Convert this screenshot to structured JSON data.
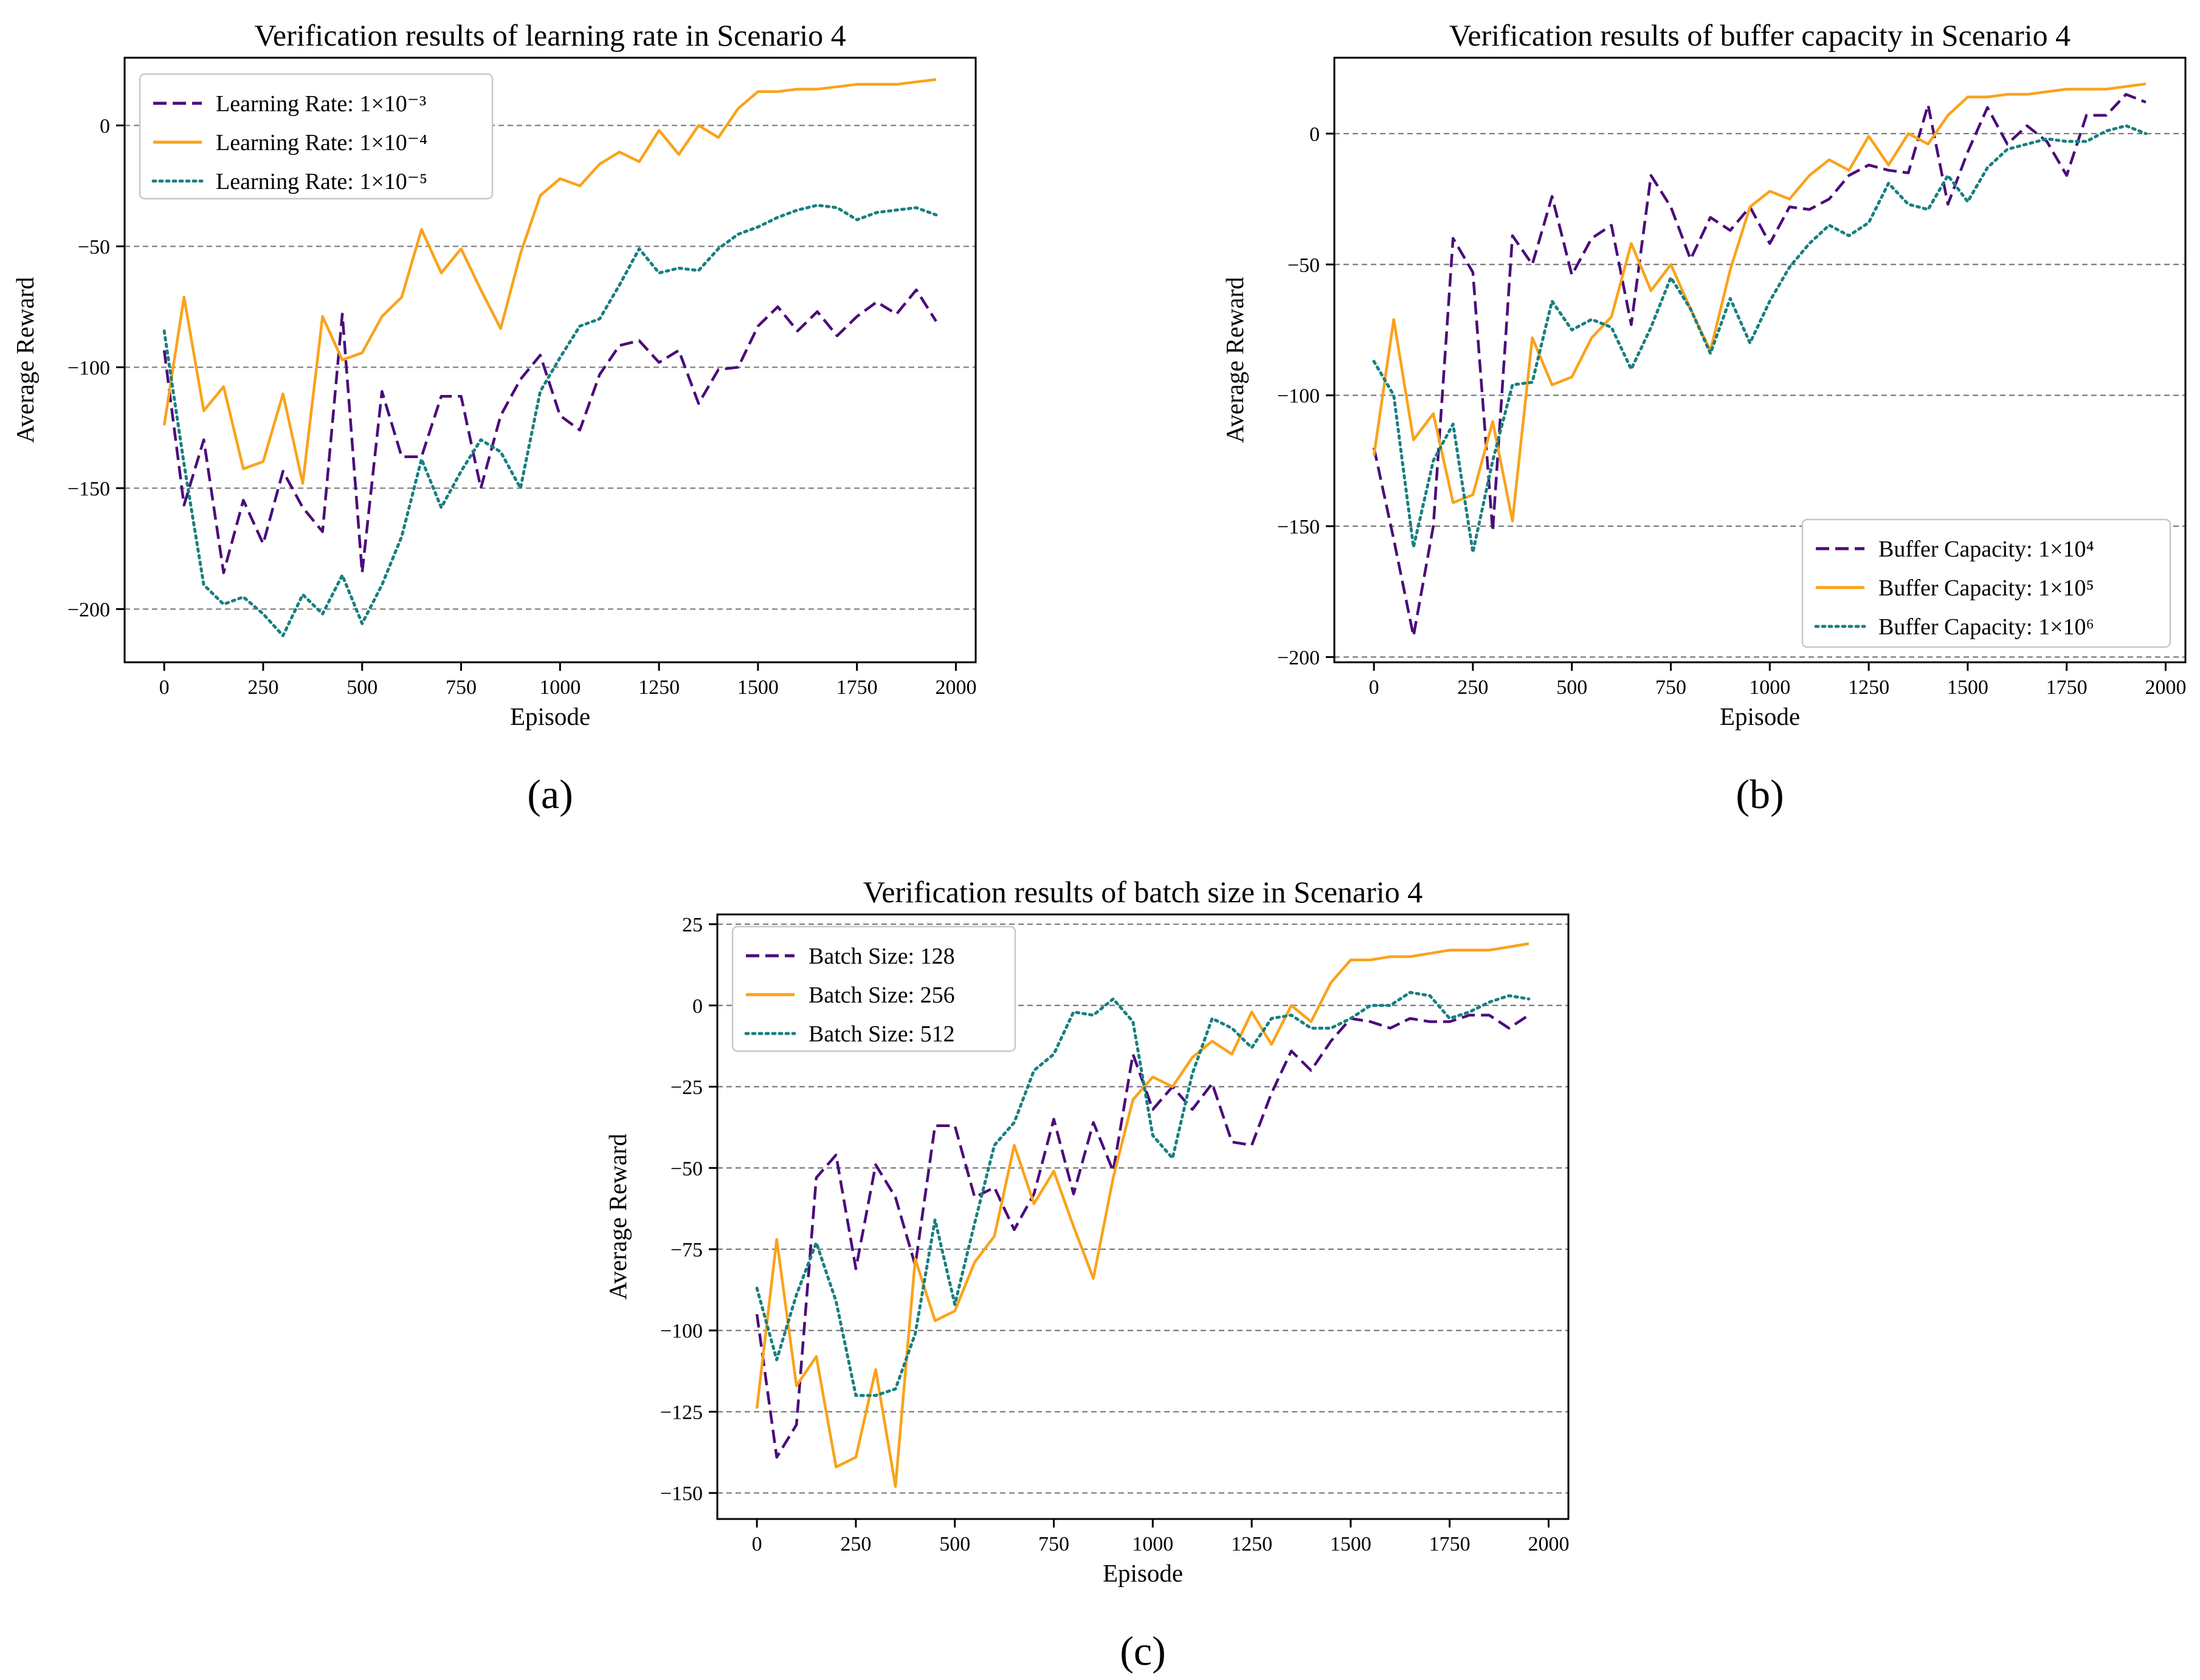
{
  "chart_data": [
    {
      "type": "line",
      "panel_label": "(a)",
      "title": "Verification results of learning rate in Scenario 4",
      "xlabel": "Episode",
      "ylabel": "Average Reward",
      "xlim": [
        -100,
        2050
      ],
      "ylim": [
        -222,
        28
      ],
      "xticks": [
        0,
        250,
        500,
        750,
        1000,
        1250,
        1500,
        1750,
        2000
      ],
      "yticks": [
        0,
        -50,
        -100,
        -150,
        -200
      ],
      "grid": "horizontal dashed",
      "legend_position": "top-left",
      "x": [
        0,
        50,
        100,
        150,
        200,
        250,
        300,
        350,
        400,
        450,
        500,
        550,
        600,
        650,
        700,
        750,
        800,
        850,
        900,
        950,
        1000,
        1050,
        1100,
        1150,
        1200,
        1250,
        1300,
        1350,
        1400,
        1450,
        1500,
        1550,
        1600,
        1650,
        1700,
        1750,
        1800,
        1850,
        1900,
        1950
      ],
      "series": [
        {
          "name": "Learning Rate: 1×10⁻³",
          "color": "#4b0c7a",
          "style": "dashed",
          "values": [
            -93,
            -157,
            -130,
            -185,
            -155,
            -173,
            -143,
            -158,
            -168,
            -78,
            -185,
            -110,
            -137,
            -137,
            -112,
            -112,
            -150,
            -120,
            -105,
            -95,
            -120,
            -126,
            -103,
            -91,
            -89,
            -98,
            -93,
            -115,
            -101,
            -100,
            -83,
            -75,
            -85,
            -77,
            -87,
            -79,
            -73,
            -78,
            -68,
            -81
          ]
        },
        {
          "name": "Learning Rate: 1×10⁻⁴",
          "color": "#f9a31b",
          "style": "solid",
          "values": [
            -124,
            -71,
            -118,
            -108,
            -142,
            -139,
            -111,
            -148,
            -79,
            -97,
            -94,
            -79,
            -71,
            -43,
            -61,
            -51,
            -68,
            -84,
            -53,
            -29,
            -22,
            -25,
            -16,
            -11,
            -15,
            -2,
            -12,
            0,
            -5,
            7,
            14,
            14,
            15,
            15,
            16,
            17,
            17,
            17,
            18,
            19
          ]
        },
        {
          "name": "Learning Rate: 1×10⁻⁵",
          "color": "#1a7f80",
          "style": "dotted",
          "values": [
            -85,
            -140,
            -190,
            -198,
            -195,
            -202,
            -211,
            -194,
            -202,
            -186,
            -206,
            -190,
            -170,
            -138,
            -158,
            -143,
            -130,
            -135,
            -150,
            -110,
            -96,
            -83,
            -80,
            -66,
            -51,
            -61,
            -59,
            -60,
            -51,
            -45,
            -42,
            -38,
            -35,
            -33,
            -34,
            -39,
            -36,
            -35,
            -34,
            -37
          ]
        }
      ]
    },
    {
      "type": "line",
      "panel_label": "(b)",
      "title": "Verification results of buffer capacity in Scenario 4",
      "xlabel": "Episode",
      "ylabel": "Average Reward",
      "xlim": [
        -100,
        2050
      ],
      "ylim": [
        -202,
        29
      ],
      "xticks": [
        0,
        250,
        500,
        750,
        1000,
        1250,
        1500,
        1750,
        2000
      ],
      "yticks": [
        0,
        -50,
        -100,
        -150,
        -200
      ],
      "grid": "horizontal dashed",
      "legend_position": "bottom-right",
      "x": [
        0,
        50,
        100,
        150,
        200,
        250,
        300,
        350,
        400,
        450,
        500,
        550,
        600,
        650,
        700,
        750,
        800,
        850,
        900,
        950,
        1000,
        1050,
        1100,
        1150,
        1200,
        1250,
        1300,
        1350,
        1400,
        1450,
        1500,
        1550,
        1600,
        1650,
        1700,
        1750,
        1800,
        1850,
        1900,
        1950
      ],
      "series": [
        {
          "name": "Buffer Capacity: 1×10⁴",
          "color": "#4b0c7a",
          "style": "dashed",
          "values": [
            -120,
            -155,
            -192,
            -150,
            -40,
            -53,
            -152,
            -39,
            -50,
            -24,
            -54,
            -40,
            -35,
            -73,
            -16,
            -28,
            -48,
            -32,
            -37,
            -28,
            -42,
            -28,
            -29,
            -25,
            -16,
            -12,
            -14,
            -15,
            11,
            -27,
            -7,
            10,
            -4,
            3,
            -3,
            -16,
            7,
            7,
            15,
            12
          ]
        },
        {
          "name": "Buffer Capacity: 1×10⁵",
          "color": "#f9a31b",
          "style": "solid",
          "values": [
            -123,
            -71,
            -117,
            -107,
            -141,
            -138,
            -110,
            -148,
            -78,
            -96,
            -93,
            -78,
            -70,
            -42,
            -60,
            -50,
            -67,
            -83,
            -52,
            -28,
            -22,
            -25,
            -16,
            -10,
            -14,
            -1,
            -12,
            0,
            -4,
            7,
            14,
            14,
            15,
            15,
            16,
            17,
            17,
            17,
            18,
            19
          ]
        },
        {
          "name": "Buffer Capacity: 1×10⁶",
          "color": "#1a7f80",
          "style": "dotted",
          "values": [
            -87,
            -100,
            -158,
            -125,
            -111,
            -160,
            -125,
            -96,
            -95,
            -64,
            -75,
            -71,
            -74,
            -90,
            -74,
            -55,
            -67,
            -84,
            -63,
            -80,
            -64,
            -51,
            -42,
            -35,
            -39,
            -34,
            -19,
            -27,
            -29,
            -16,
            -26,
            -13,
            -6,
            -4,
            -2,
            -3,
            -3,
            1,
            3,
            0
          ]
        }
      ]
    },
    {
      "type": "line",
      "panel_label": "(c)",
      "title": "Verification results of batch size in Scenario 4",
      "xlabel": "Episode",
      "ylabel": "Average Reward",
      "xlim": [
        -100,
        2050
      ],
      "ylim": [
        -158,
        28
      ],
      "xticks": [
        0,
        250,
        500,
        750,
        1000,
        1250,
        1500,
        1750,
        2000
      ],
      "yticks": [
        25,
        0,
        -25,
        -50,
        -75,
        -100,
        -125,
        -150
      ],
      "grid": "horizontal dashed",
      "legend_position": "top-left",
      "x": [
        0,
        50,
        100,
        150,
        200,
        250,
        300,
        350,
        400,
        450,
        500,
        550,
        600,
        650,
        700,
        750,
        800,
        850,
        900,
        950,
        1000,
        1050,
        1100,
        1150,
        1200,
        1250,
        1300,
        1350,
        1400,
        1450,
        1500,
        1550,
        1600,
        1650,
        1700,
        1750,
        1800,
        1850,
        1900,
        1950
      ],
      "series": [
        {
          "name": "Batch Size: 128",
          "color": "#4b0c7a",
          "style": "dashed",
          "values": [
            -95,
            -139,
            -129,
            -53,
            -46,
            -81,
            -49,
            -59,
            -80,
            -37,
            -37,
            -59,
            -56,
            -69,
            -58,
            -35,
            -58,
            -36,
            -51,
            -15,
            -32,
            -25,
            -32,
            -24,
            -42,
            -43,
            -27,
            -14,
            -20,
            -11,
            -4,
            -5,
            -7,
            -4,
            -5,
            -5,
            -3,
            -3,
            -7,
            -3
          ]
        },
        {
          "name": "Batch Size: 256",
          "color": "#f9a31b",
          "style": "solid",
          "values": [
            -124,
            -72,
            -117,
            -108,
            -142,
            -139,
            -112,
            -148,
            -78,
            -97,
            -94,
            -79,
            -71,
            -43,
            -61,
            -51,
            -68,
            -84,
            -53,
            -29,
            -22,
            -25,
            -16,
            -11,
            -15,
            -2,
            -12,
            0,
            -5,
            7,
            14,
            14,
            15,
            15,
            16,
            17,
            17,
            17,
            18,
            19
          ]
        },
        {
          "name": "Batch Size: 512",
          "color": "#1a7f80",
          "style": "dotted",
          "values": [
            -87,
            -109,
            -89,
            -73,
            -91,
            -120,
            -120,
            -118,
            -101,
            -66,
            -92,
            -67,
            -43,
            -36,
            -20,
            -15,
            -2,
            -3,
            2,
            -5,
            -40,
            -47,
            -21,
            -4,
            -7,
            -13,
            -4,
            -3,
            -7,
            -7,
            -4,
            0,
            0,
            4,
            3,
            -4,
            -2,
            1,
            3,
            2
          ]
        }
      ]
    }
  ]
}
